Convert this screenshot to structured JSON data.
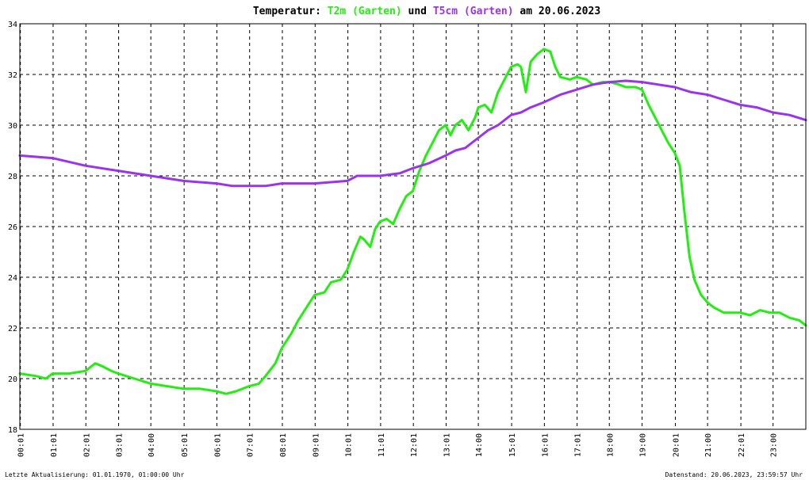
{
  "chart_data": {
    "type": "line",
    "title": {
      "prefix": "Temperatur: ",
      "series1": "T2m (Garten)",
      "middle": " und ",
      "series2": "T5cm (Garten)",
      "suffix": " am 20.06.2023"
    },
    "xlabel": "",
    "ylabel": "",
    "x_range_hours": [
      0,
      24
    ],
    "ylim": [
      18,
      34
    ],
    "y_ticks": [
      "18",
      "20",
      "22",
      "24",
      "26",
      "28",
      "30",
      "32",
      "34"
    ],
    "x_ticks": [
      {
        "label": "00:01",
        "h": 0.0167
      },
      {
        "label": "01:01",
        "h": 1.0167
      },
      {
        "label": "02:01",
        "h": 2.0167
      },
      {
        "label": "03:01",
        "h": 3.0167
      },
      {
        "label": "04:00",
        "h": 4.0
      },
      {
        "label": "05:01",
        "h": 5.0167
      },
      {
        "label": "06:01",
        "h": 6.0167
      },
      {
        "label": "07:01",
        "h": 7.0167
      },
      {
        "label": "08:01",
        "h": 8.0167
      },
      {
        "label": "09:01",
        "h": 9.0167
      },
      {
        "label": "10:01",
        "h": 10.0167
      },
      {
        "label": "11:01",
        "h": 11.0167
      },
      {
        "label": "12:01",
        "h": 12.0167
      },
      {
        "label": "13:01",
        "h": 13.0167
      },
      {
        "label": "14:00",
        "h": 14.0
      },
      {
        "label": "15:01",
        "h": 15.0167
      },
      {
        "label": "16:01",
        "h": 16.0167
      },
      {
        "label": "17:01",
        "h": 17.0167
      },
      {
        "label": "18:00",
        "h": 18.0
      },
      {
        "label": "19:00",
        "h": 19.0
      },
      {
        "label": "20:01",
        "h": 20.0167
      },
      {
        "label": "21:00",
        "h": 21.0
      },
      {
        "label": "22:01",
        "h": 22.0167
      },
      {
        "label": "23:00",
        "h": 23.0
      }
    ],
    "grid": true,
    "series": [
      {
        "name": "T2m (Garten)",
        "color": "#22ee11",
        "x": [
          0,
          0.5,
          0.8,
          1,
          1.5,
          2,
          2.3,
          2.5,
          2.8,
          3,
          3.5,
          4,
          4.5,
          5,
          5.5,
          6,
          6.3,
          6.6,
          7,
          7.3,
          7.5,
          7.8,
          8,
          8.3,
          8.5,
          8.8,
          9,
          9.3,
          9.5,
          9.8,
          10,
          10.2,
          10.4,
          10.5,
          10.7,
          10.85,
          11,
          11.2,
          11.4,
          11.6,
          11.8,
          12,
          12.2,
          12.4,
          12.6,
          12.8,
          13,
          13.15,
          13.3,
          13.5,
          13.7,
          13.9,
          14,
          14.2,
          14.4,
          14.6,
          14.8,
          15,
          15.2,
          15.3,
          15.45,
          15.6,
          15.8,
          16,
          16.2,
          16.35,
          16.5,
          16.8,
          17,
          17.3,
          17.5,
          17.8,
          18,
          18.3,
          18.5,
          18.8,
          19,
          19.2,
          19.4,
          19.6,
          19.8,
          20,
          20.15,
          20.3,
          20.45,
          20.6,
          20.8,
          21,
          21.2,
          21.5,
          22,
          22.3,
          22.6,
          22.9,
          23.2,
          23.5,
          23.8,
          24
        ],
        "values": [
          20.2,
          20.1,
          20.0,
          20.2,
          20.2,
          20.3,
          20.6,
          20.5,
          20.3,
          20.2,
          20.0,
          19.8,
          19.7,
          19.6,
          19.6,
          19.5,
          19.4,
          19.5,
          19.7,
          19.8,
          20.1,
          20.6,
          21.2,
          21.8,
          22.3,
          22.9,
          23.3,
          23.4,
          23.8,
          23.9,
          24.3,
          25.0,
          25.6,
          25.5,
          25.2,
          25.9,
          26.2,
          26.3,
          26.1,
          26.7,
          27.2,
          27.4,
          28.2,
          28.8,
          29.3,
          29.8,
          30.0,
          29.6,
          30.0,
          30.2,
          29.8,
          30.3,
          30.7,
          30.8,
          30.5,
          31.3,
          31.8,
          32.3,
          32.4,
          32.3,
          31.3,
          32.5,
          32.8,
          33.0,
          32.9,
          32.3,
          31.9,
          31.8,
          31.9,
          31.8,
          31.6,
          31.7,
          31.7,
          31.6,
          31.5,
          31.5,
          31.4,
          30.8,
          30.3,
          29.8,
          29.3,
          28.9,
          28.4,
          26.5,
          24.8,
          23.9,
          23.3,
          23.0,
          22.8,
          22.6,
          22.6,
          22.5,
          22.7,
          22.6,
          22.6,
          22.4,
          22.3,
          22.1
        ]
      },
      {
        "name": "T5cm (Garten)",
        "color": "#9933ee",
        "x": [
          0,
          1,
          2,
          3,
          4,
          5,
          6,
          6.5,
          7,
          7.5,
          8,
          9,
          10,
          10.3,
          11,
          11.6,
          12,
          12.5,
          13,
          13.3,
          13.6,
          14,
          14.3,
          14.6,
          15,
          15.3,
          15.6,
          16,
          16.5,
          17,
          17.5,
          18,
          18.5,
          19,
          19.5,
          20,
          20.5,
          21,
          21.5,
          22,
          22.5,
          23,
          23.5,
          24
        ],
        "values": [
          28.8,
          28.7,
          28.4,
          28.2,
          28.0,
          27.8,
          27.7,
          27.6,
          27.6,
          27.6,
          27.7,
          27.7,
          27.8,
          28.0,
          28.0,
          28.1,
          28.3,
          28.5,
          28.8,
          29.0,
          29.1,
          29.5,
          29.8,
          30.0,
          30.4,
          30.5,
          30.7,
          30.9,
          31.2,
          31.4,
          31.6,
          31.7,
          31.75,
          31.7,
          31.6,
          31.5,
          31.3,
          31.2,
          31.0,
          30.8,
          30.7,
          30.5,
          30.4,
          30.2
        ]
      }
    ]
  },
  "footer": {
    "left": "Letzte Aktualisierung: 01.01.1970, 01:00:00 Uhr",
    "right": "Datenstand: 20.06.2023, 23:59:57 Uhr"
  }
}
